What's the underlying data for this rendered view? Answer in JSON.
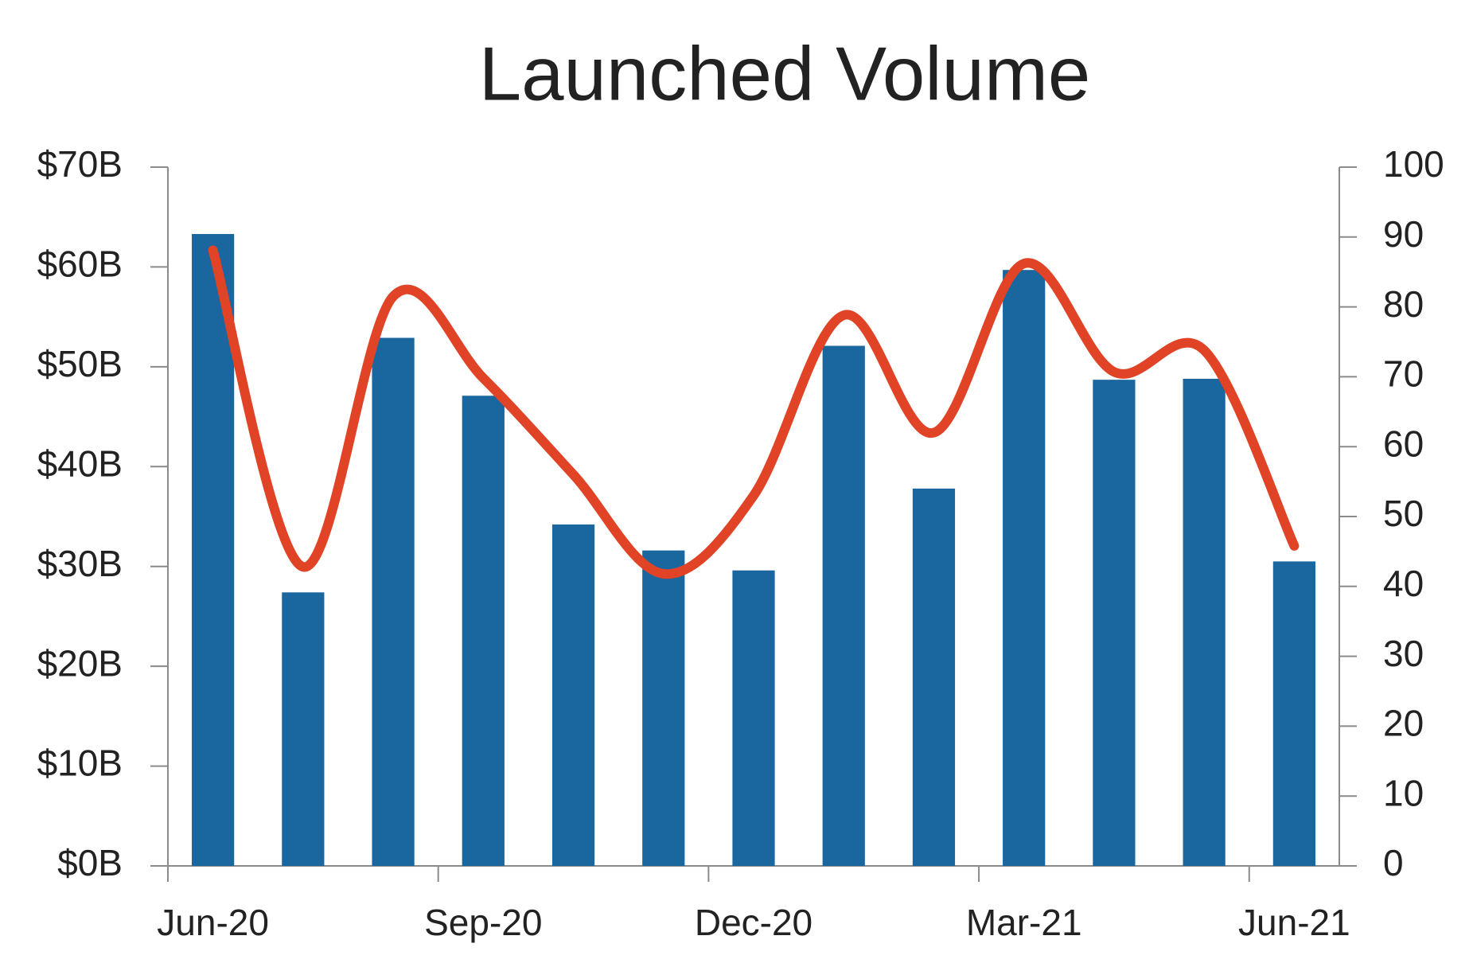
{
  "chart_data": {
    "type": "bar",
    "title": "Launched Volume",
    "categories": [
      "Jun-20",
      null,
      null,
      "Sep-20",
      null,
      null,
      "Dec-20",
      null,
      null,
      "Mar-21",
      null,
      null,
      "Jun-21"
    ],
    "series": [
      {
        "type": "bar",
        "color": "#1a669e",
        "values": [
          63.3,
          27.4,
          52.9,
          47.1,
          34.2,
          31.6,
          29.6,
          52.1,
          37.8,
          59.7,
          48.7,
          48.8,
          30.5
        ]
      },
      {
        "type": "line",
        "color": "#e04325",
        "axis": "y2",
        "values": [
          88.1,
          42.8,
          81.5,
          69.8,
          56,
          41.8,
          53,
          78.8,
          62,
          86.2,
          70.7,
          73.8,
          45.8
        ]
      }
    ],
    "ylim": [
      0,
      70
    ],
    "yticks": [
      {
        "value": 0,
        "label": "$0B"
      },
      {
        "value": 10,
        "label": "$10B"
      },
      {
        "value": 20,
        "label": "$20B"
      },
      {
        "value": 30,
        "label": "$30B"
      },
      {
        "value": 40,
        "label": "$40B"
      },
      {
        "value": 50,
        "label": "$50B"
      },
      {
        "value": 60,
        "label": "$60B"
      },
      {
        "value": 70,
        "label": "$70B"
      }
    ],
    "y2lim": [
      0,
      100
    ],
    "y2ticks": [
      0,
      10,
      20,
      30,
      40,
      50,
      60,
      70,
      80,
      90,
      100
    ],
    "grid": false
  }
}
